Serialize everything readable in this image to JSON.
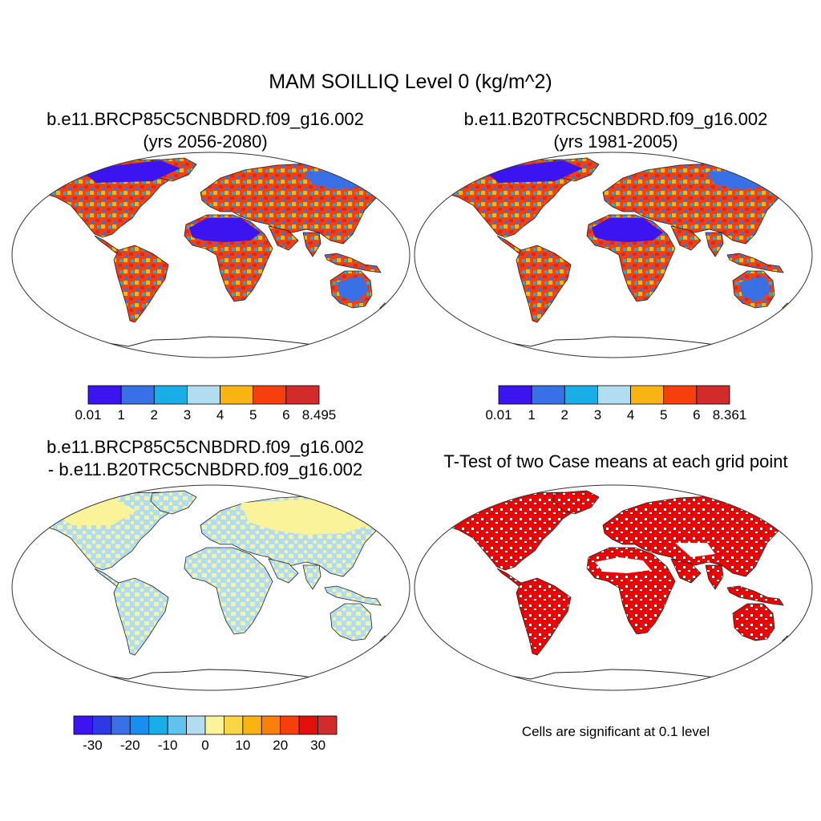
{
  "title": "MAM SOILLIQ Level 0 (kg/m^2)",
  "panels": {
    "top_left": {
      "title_line1": "b.e11.BRCP85C5CNBDRD.f09_g16.002",
      "title_line2": "(yrs 2056-2080)",
      "colorbar": {
        "colors": [
          "#3b14f0",
          "#3a70e6",
          "#1aaee8",
          "#b2dcef",
          "#f9b411",
          "#f63f0c",
          "#d32b2b"
        ],
        "labels": [
          "0.01",
          "1",
          "2",
          "3",
          "4",
          "5",
          "6",
          "8.495"
        ]
      }
    },
    "top_right": {
      "title_line1": "b.e11.B20TRC5CNBDRD.f09_g16.002",
      "title_line2": "(yrs 1981-2005)",
      "colorbar": {
        "colors": [
          "#3b14f0",
          "#3a70e6",
          "#1aaee8",
          "#b2dcef",
          "#f9b411",
          "#f63f0c",
          "#d32b2b"
        ],
        "labels": [
          "0.01",
          "1",
          "2",
          "3",
          "4",
          "5",
          "6",
          "8.361"
        ]
      }
    },
    "bottom_left": {
      "title_line1": "b.e11.BRCP85C5CNBDRD.f09_g16.002",
      "title_line2": "- b.e11.B20TRC5CNBDRD.f09_g16.002",
      "colorbar": {
        "colors": [
          "#3b14f0",
          "#2c39e5",
          "#3a70e6",
          "#1a8ef0",
          "#1aaee8",
          "#5fc2f0",
          "#b2dcef",
          "#fbf39a",
          "#f9d645",
          "#f9b411",
          "#f97f0c",
          "#f63f0c",
          "#e0100c",
          "#d32b2b"
        ],
        "labels": [
          "-30",
          "-20",
          "-10",
          "0",
          "10",
          "20",
          "30"
        ]
      }
    },
    "bottom_right": {
      "title_line1": "T-Test of two Case means at each grid point",
      "note": "Cells are significant at 0.1 level"
    }
  },
  "map_colors": {
    "outline": "#222222",
    "top_wet": "#f63f0c",
    "top_dry": "#3b14f0",
    "diff_pos": "#fbf39a",
    "diff_neg": "#b2dcef",
    "ttest": "#f00000"
  }
}
